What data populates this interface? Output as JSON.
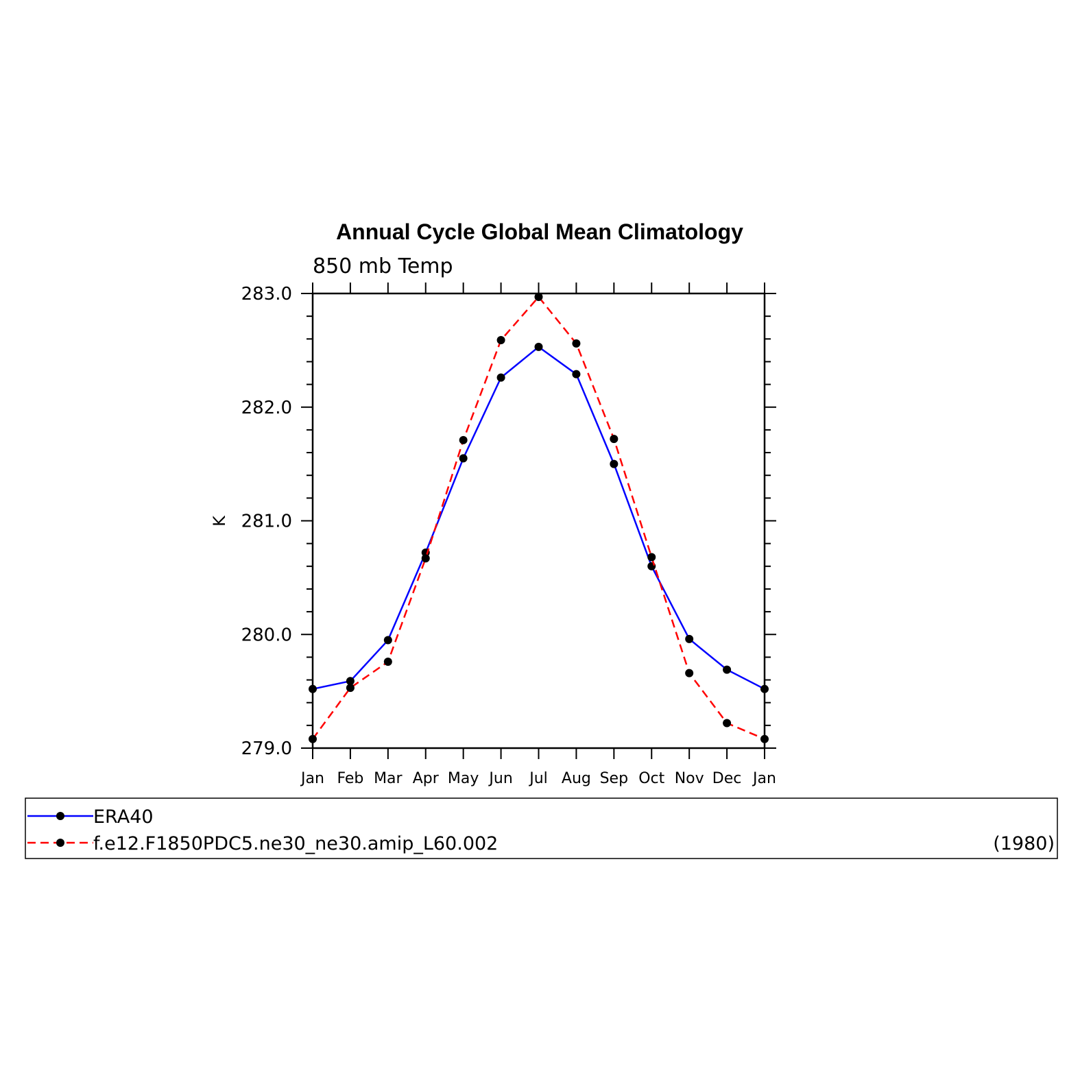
{
  "chart_data": {
    "type": "line",
    "title": "Annual Cycle Global Mean Climatology",
    "subtitle": "850 mb Temp",
    "xlabel": "",
    "ylabel": "K",
    "categories": [
      "Jan",
      "Feb",
      "Mar",
      "Apr",
      "May",
      "Jun",
      "Jul",
      "Aug",
      "Sep",
      "Oct",
      "Nov",
      "Dec",
      "Jan"
    ],
    "ylim": [
      279.0,
      283.0
    ],
    "yticks": [
      "283.0",
      "282.0",
      "281.0",
      "280.0",
      "279.0"
    ],
    "series": [
      {
        "name": "ERA40",
        "color": "#0000ff",
        "dash": "solid",
        "values": [
          279.52,
          279.59,
          279.95,
          280.72,
          281.55,
          282.26,
          282.53,
          282.29,
          281.5,
          280.6,
          279.96,
          279.69,
          279.52
        ]
      },
      {
        "name": "f.e12.F1850PDC5.ne30_ne30.amip_L60.002",
        "color": "#ff0000",
        "dash": "dashed",
        "values": [
          279.08,
          279.53,
          279.76,
          280.67,
          281.71,
          282.59,
          282.97,
          282.56,
          281.72,
          280.68,
          279.66,
          279.22,
          279.08
        ]
      }
    ],
    "legend": {
      "entries": [
        "ERA40",
        "f.e12.F1850PDC5.ne30_ne30.amip_L60.002"
      ],
      "note": "(1980)",
      "placement": "bottom"
    }
  }
}
